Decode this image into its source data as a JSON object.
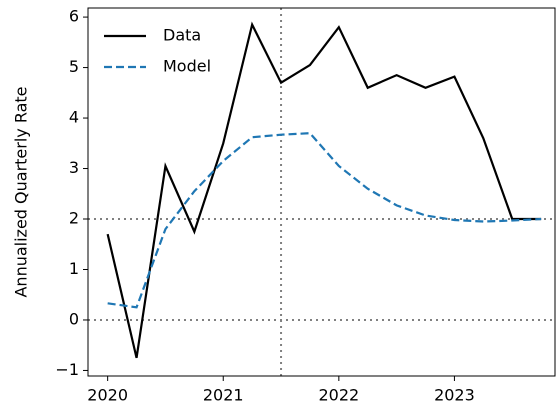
{
  "chart_data": {
    "type": "line",
    "y_label": "Annualized Quarterly Rate",
    "x": [
      2020,
      2020.25,
      2020.5,
      2020.75,
      2021,
      2021.25,
      2021.5,
      2021.75,
      2022,
      2022.25,
      2022.5,
      2022.75,
      2023,
      2023.25,
      2023.5,
      2023.75
    ],
    "series": [
      {
        "name": "Data",
        "color": "#000000",
        "dash": "solid",
        "values": [
          1.7,
          -0.75,
          3.05,
          1.75,
          3.5,
          5.85,
          4.7,
          5.05,
          5.8,
          4.6,
          4.85,
          4.6,
          4.82,
          3.6,
          2.0,
          2.0
        ]
      },
      {
        "name": "Model",
        "color": "#1f77b4",
        "dash": "dashed",
        "values": [
          0.33,
          0.25,
          1.8,
          2.55,
          3.15,
          3.62,
          3.67,
          3.7,
          3.05,
          2.6,
          2.27,
          2.07,
          1.98,
          1.95,
          1.97,
          2.0
        ]
      }
    ],
    "hlines": [
      0,
      2
    ],
    "vlines": [
      2021.5
    ],
    "ref_color": "#808080",
    "xlim": [
      2019.83,
      2023.87
    ],
    "ylim": [
      -1.11,
      6.18
    ],
    "xticks": [
      2020,
      2021,
      2022,
      2023
    ],
    "yticks": [
      {
        "value": -1,
        "label": "−1"
      },
      0,
      1,
      2,
      3,
      4,
      5,
      6
    ],
    "legend": "upper left"
  }
}
